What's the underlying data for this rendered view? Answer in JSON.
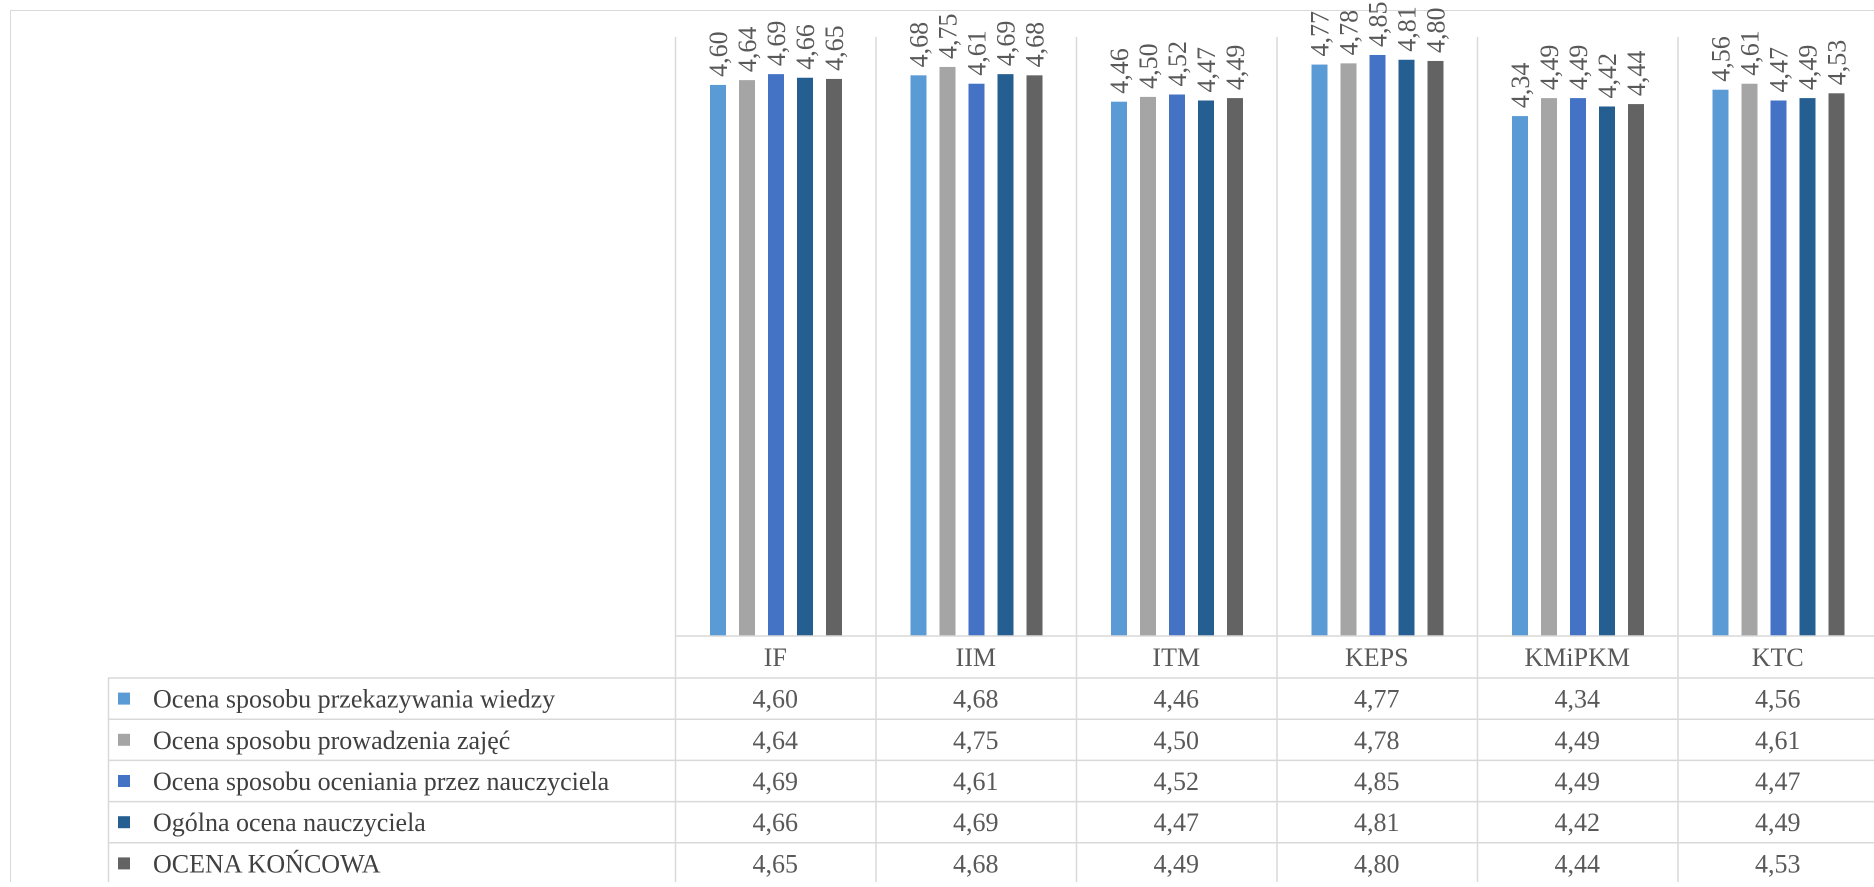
{
  "chart_data": {
    "type": "bar",
    "categories": [
      "IF",
      "IIM",
      "ITM",
      "KEPS",
      "KMiPKM",
      "KTC"
    ],
    "series": [
      {
        "name": "Ocena sposobu przekazywania wiedzy",
        "color": "#5B9BD5",
        "values": [
          4.6,
          4.68,
          4.46,
          4.77,
          4.34,
          4.56
        ],
        "labels": [
          "4,60",
          "4,68",
          "4,46",
          "4,77",
          "4,34",
          "4,56"
        ]
      },
      {
        "name": "Ocena sposobu prowadzenia zajęć",
        "color": "#A5A5A5",
        "values": [
          4.64,
          4.75,
          4.5,
          4.78,
          4.49,
          4.61
        ],
        "labels": [
          "4,64",
          "4,75",
          "4,50",
          "4,78",
          "4,49",
          "4,61"
        ]
      },
      {
        "name": "Ocena sposobu oceniania przez nauczyciela",
        "color": "#4472C4",
        "values": [
          4.69,
          4.61,
          4.52,
          4.85,
          4.49,
          4.47
        ],
        "labels": [
          "4,69",
          "4,61",
          "4,52",
          "4,85",
          "4,49",
          "4,47"
        ]
      },
      {
        "name": "Ogólna ocena nauczyciela",
        "color": "#255E91",
        "values": [
          4.66,
          4.69,
          4.47,
          4.81,
          4.42,
          4.49
        ],
        "labels": [
          "4,66",
          "4,69",
          "4,47",
          "4,81",
          "4,42",
          "4,49"
        ]
      },
      {
        "name": "OCENA  KOŃCOWA",
        "color": "#636363",
        "values": [
          4.65,
          4.68,
          4.49,
          4.8,
          4.44,
          4.53
        ],
        "labels": [
          "4,65",
          "4,68",
          "4,49",
          "4,80",
          "4,44",
          "4,53"
        ]
      }
    ],
    "ylim": [
      0,
      5
    ],
    "grid": false,
    "legend": "data-table-left",
    "data_table": true
  }
}
